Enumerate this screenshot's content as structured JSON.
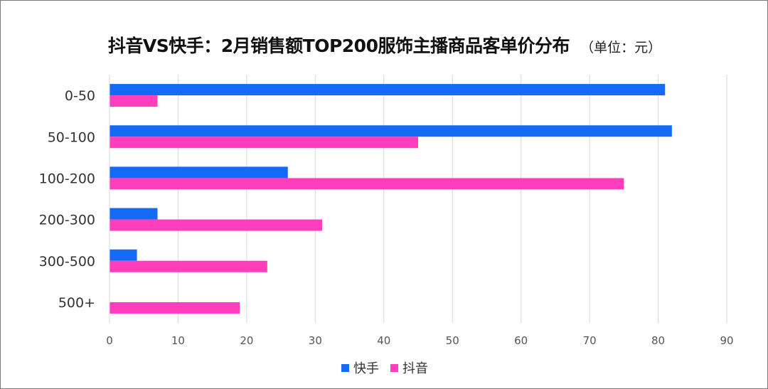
{
  "title": "抖音VS快手：2月销售额TOP200服饰主播商品客单价分布",
  "unit_note": "（单位：元）",
  "chart_data": {
    "type": "bar",
    "orientation": "horizontal",
    "title": "抖音VS快手：2月销售额TOP200服饰主播商品客单价分布",
    "categories": [
      "0-50",
      "50-100",
      "100-200",
      "200-300",
      "300-500",
      "500+"
    ],
    "series": [
      {
        "name": "快手",
        "color": "#1469f5",
        "values": [
          81,
          82,
          26,
          7,
          4,
          0
        ]
      },
      {
        "name": "抖音",
        "color": "#ff3dbd",
        "values": [
          7,
          45,
          75,
          31,
          23,
          19
        ]
      }
    ],
    "xlim": [
      0,
      90
    ],
    "xticks": [
      0,
      10,
      20,
      30,
      40,
      50,
      60,
      70,
      80,
      90
    ],
    "grid": true,
    "legend": "bottom-center"
  }
}
